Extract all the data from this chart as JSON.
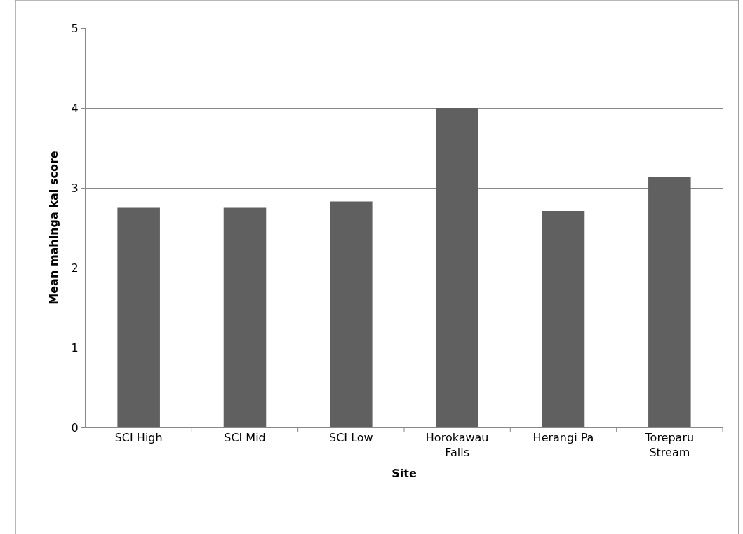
{
  "chart_data": {
    "type": "bar",
    "xlabel": "Site",
    "ylabel": "Mean mahinga kai score",
    "categories": [
      "SCI High",
      "SCI Mid",
      "SCI Low",
      "Horokawau Falls",
      "Herangi Pa",
      "Toreparu Stream"
    ],
    "values": [
      2.75,
      2.75,
      2.83,
      4.0,
      2.71,
      3.14
    ],
    "color": "#606060",
    "ylim": [
      0,
      5
    ],
    "yticks": [
      0,
      1,
      2,
      3,
      4,
      5
    ],
    "grid": "y"
  }
}
